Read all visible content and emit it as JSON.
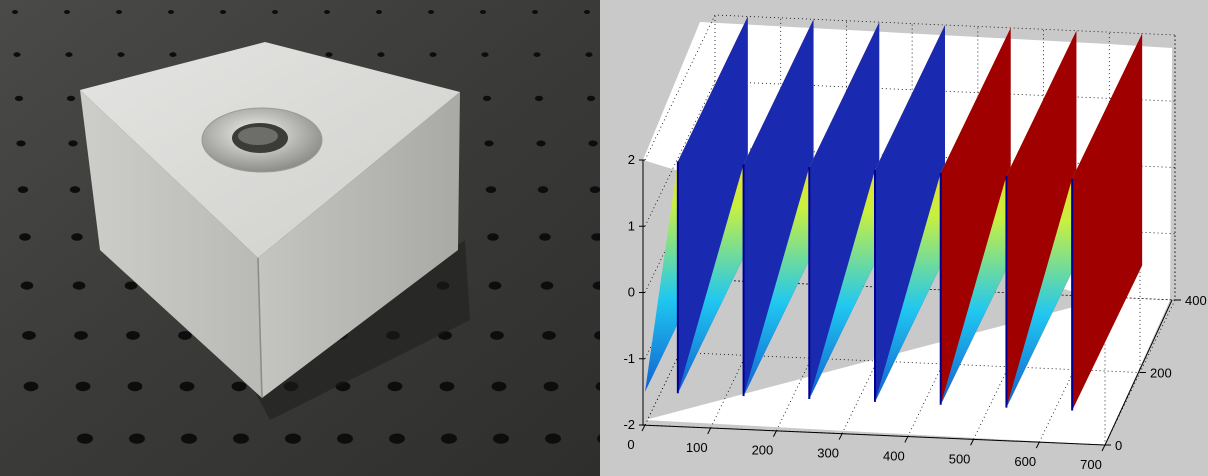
{
  "photo": {
    "subject_icon": "triangular-aluminum-block-icon",
    "colors": {
      "table": "#3e3e3c",
      "hole": "#0d0d0d",
      "metal_light": "#d8d8d6",
      "metal_dark": "#a9a9a6"
    }
  },
  "chart_data": {
    "type": "surface",
    "title": "",
    "xlabel": "",
    "ylabel": "",
    "zlabel": "",
    "x_ticks": [
      "0",
      "100",
      "200",
      "300",
      "400",
      "500",
      "600",
      "700"
    ],
    "y_ticks": [
      "0",
      "200",
      "400"
    ],
    "z_ticks": [
      "-2",
      "-1",
      "0",
      "1",
      "2"
    ],
    "xlim": [
      0,
      700
    ],
    "ylim": [
      0,
      400
    ],
    "zlim": [
      -2,
      2
    ],
    "grid": true,
    "colormap": "jet",
    "sawtooth_peaks_x": [
      50,
      150,
      250,
      350,
      450,
      550,
      650
    ],
    "z_range": [
      -1.5,
      2.0
    ],
    "colors": {
      "background": "#c9c9c9",
      "axes": "#ffffff",
      "high": "#a00000",
      "low": "#000090"
    }
  }
}
